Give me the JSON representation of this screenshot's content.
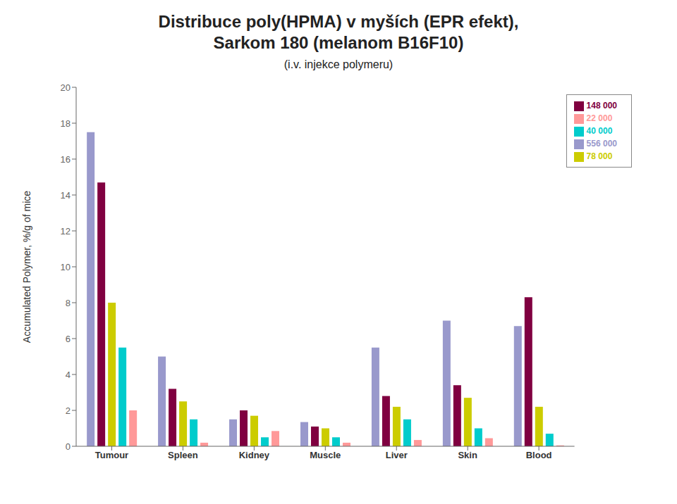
{
  "chart_data": {
    "type": "bar",
    "title": "Distribuce poly(HPMA) v myších (EPR efekt),\nSarkom 180 (melanom B16F10)",
    "subtitle": "(i.v. injekce polymeru)",
    "categories": [
      "Tumour",
      "Spleen",
      "Kidney",
      "Muscle",
      "Liver",
      "Skin",
      "Blood"
    ],
    "series": [
      {
        "name": "556 000",
        "color": "#9999cc",
        "values": [
          17.5,
          5.0,
          1.5,
          1.35,
          5.5,
          7.0,
          6.7
        ]
      },
      {
        "name": "148 000",
        "color": "#800040",
        "values": [
          14.7,
          3.2,
          2.0,
          1.1,
          2.8,
          3.4,
          8.3
        ]
      },
      {
        "name": "78 000",
        "color": "#cccc00",
        "values": [
          8.0,
          2.5,
          1.7,
          1.0,
          2.2,
          2.7,
          2.2
        ]
      },
      {
        "name": "40 000",
        "color": "#00cccc",
        "values": [
          5.5,
          1.5,
          0.5,
          0.5,
          1.5,
          1.0,
          0.7
        ]
      },
      {
        "name": "22 000",
        "color": "#ff9999",
        "values": [
          2.0,
          0.2,
          0.85,
          0.2,
          0.35,
          0.45,
          0.05
        ]
      }
    ],
    "y_label": "Accumulated Polymer, %/g of mice",
    "ylim": [
      0,
      20
    ],
    "yticks": [
      0,
      2,
      4,
      6,
      8,
      10,
      12,
      14,
      16,
      18,
      20
    ],
    "grid": false,
    "legend": "upper right"
  }
}
